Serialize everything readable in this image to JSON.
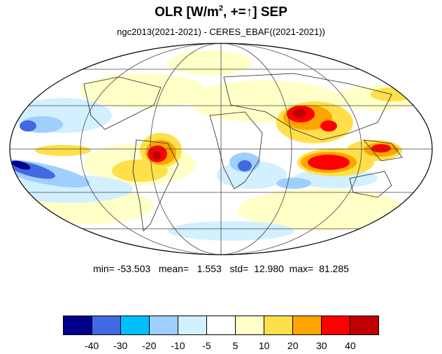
{
  "title": {
    "main": "OLR [W/m",
    "sup": "2",
    "rest": ", +=",
    "arrow": "↑",
    "tail": "] SEP"
  },
  "subtitle": "ngc2013(2021-2021) - CERES_EBAF((2021-2021))",
  "stats": "min= -53.503   mean=   1.553   std=  12.980  max=  81.285",
  "legend": {
    "colors": [
      "#00008b",
      "#4169e1",
      "#00bfff",
      "#9fcfff",
      "#d2f0ff",
      "#ffffff",
      "#ffffc8",
      "#ffe04a",
      "#ffa500",
      "#ff0000",
      "#c00000"
    ],
    "labels": [
      "-40",
      "-30",
      "-20",
      "-10",
      "-5",
      "5",
      "10",
      "20",
      "30",
      "40"
    ]
  },
  "map": {
    "projection": "mollweide",
    "field": "OLR difference anomaly",
    "graticule": true
  }
}
